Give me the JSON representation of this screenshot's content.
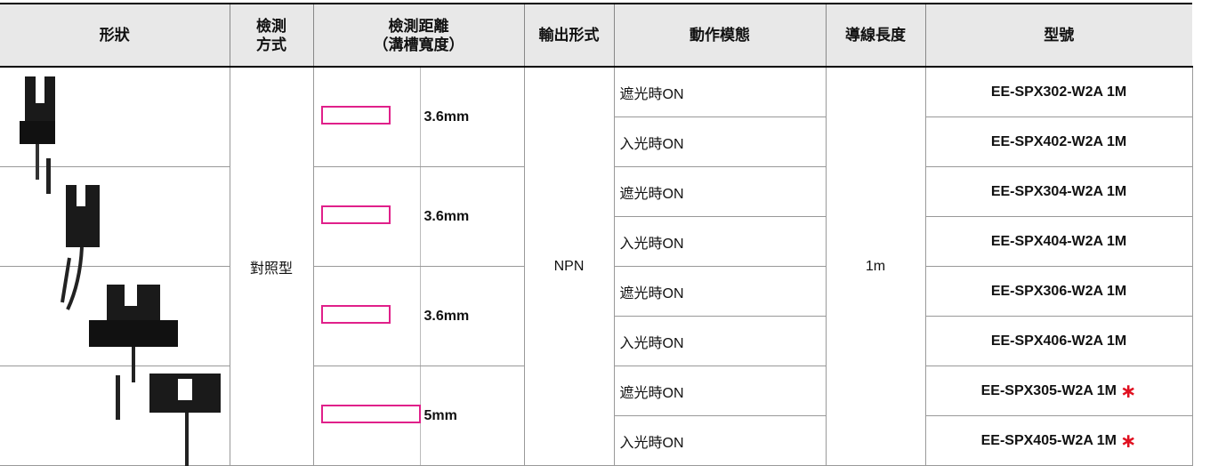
{
  "table": {
    "header": [
      [
        "形狀"
      ],
      [
        "檢測",
        "方式"
      ],
      [
        "檢測距離",
        "（溝槽寬度）"
      ],
      [
        "輸出形式"
      ],
      [
        "動作模態"
      ],
      [
        "導線長度"
      ],
      [
        "型號"
      ]
    ],
    "detection_method": "對照型",
    "output": "NPN",
    "lead_length": "1m",
    "groups": [
      {
        "distance": "3.6mm",
        "rows": [
          {
            "mode": "遮光時ON",
            "model": "EE-SPX302-W2A 1M"
          },
          {
            "mode": "入光時ON",
            "model": "EE-SPX402-W2A 1M"
          }
        ]
      },
      {
        "distance": "3.6mm",
        "rows": [
          {
            "mode": "遮光時ON",
            "model": "EE-SPX304-W2A 1M"
          },
          {
            "mode": "入光時ON",
            "model": "EE-SPX404-W2A 1M"
          }
        ]
      },
      {
        "distance": "3.6mm",
        "rows": [
          {
            "mode": "遮光時ON",
            "model": "EE-SPX306-W2A 1M"
          },
          {
            "mode": "入光時ON",
            "model": "EE-SPX406-W2A 1M"
          }
        ]
      },
      {
        "distance": "5mm",
        "rows": [
          {
            "mode": "遮光時ON",
            "model": "EE-SPX305-W2A 1M",
            "mark": "∗"
          },
          {
            "mode": "入光時ON",
            "model": "EE-SPX405-W2A 1M",
            "mark": "∗"
          }
        ]
      }
    ]
  }
}
